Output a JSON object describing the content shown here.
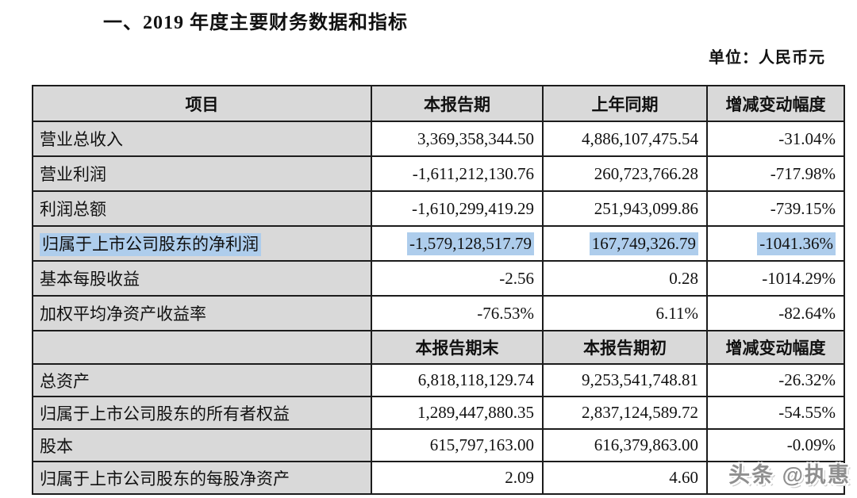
{
  "title": "一、2019 年度主要财务数据和指标",
  "unit_label": "单位：人民币元",
  "colors": {
    "header_bg": "#d9d9d9",
    "selection_highlight": "#aecdec",
    "border": "#1c1c1c",
    "watermark_gray": "#8f8f8f"
  },
  "table": {
    "sections": [
      {
        "header": [
          "项目",
          "本报告期",
          "上年同期",
          "增减变动幅度"
        ],
        "rows": [
          {
            "cells": [
              "营业总收入",
              "3,369,358,344.50",
              "4,886,107,475.54",
              "-31.04%"
            ],
            "highlight": false
          },
          {
            "cells": [
              "营业利润",
              "-1,611,212,130.76",
              "260,723,766.28",
              "-717.98%"
            ],
            "highlight": false
          },
          {
            "cells": [
              "利润总额",
              "-1,610,299,419.29",
              "251,943,099.86",
              "-739.15%"
            ],
            "highlight": false
          },
          {
            "cells": [
              "归属于上市公司股东的净利润",
              "-1,579,128,517.79",
              "167,749,326.79",
              "-1041.36%"
            ],
            "highlight": true
          },
          {
            "cells": [
              "基本每股收益",
              "-2.56",
              "0.28",
              "-1014.29%"
            ],
            "highlight": false
          },
          {
            "cells": [
              "加权平均净资产收益率",
              "-76.53%",
              "6.11%",
              "-82.64%"
            ],
            "highlight": false
          }
        ]
      },
      {
        "header": [
          "",
          "本报告期末",
          "本报告期初",
          "增减变动幅度"
        ],
        "rows": [
          {
            "cells": [
              "总资产",
              "6,818,118,129.74",
              "9,253,541,748.81",
              "-26.32%"
            ],
            "highlight": false
          },
          {
            "cells": [
              "归属于上市公司股东的所有者权益",
              "1,289,447,880.35",
              "2,837,124,589.72",
              "-54.55%"
            ],
            "highlight": false
          },
          {
            "cells": [
              "股本",
              "615,797,163.00",
              "616,379,863.00",
              "-0.09%"
            ],
            "highlight": false
          },
          {
            "cells": [
              "归属于上市公司股东的每股净资产",
              "2.09",
              "4.60",
              ""
            ],
            "highlight": false
          }
        ]
      }
    ]
  },
  "watermark": "头条 @执惠"
}
